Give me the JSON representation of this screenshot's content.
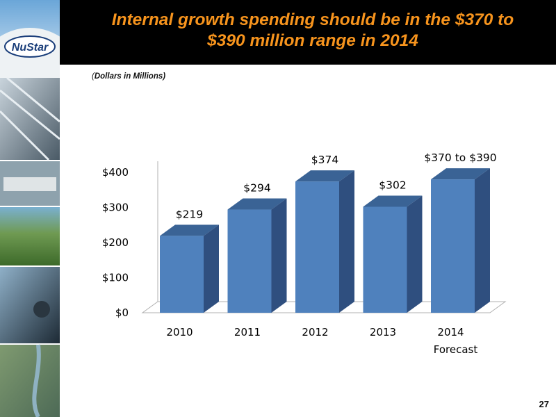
{
  "header": {
    "title_line1": "Internal growth spending should be in the $370 to",
    "title_line2": "$390 million range in 2014"
  },
  "subtitle_paren": "(",
  "subtitle_text": "Dollars in Millions)",
  "logo_text": "NuStar",
  "page_number": "27",
  "colors": {
    "title": "#f7941d",
    "bar_front": "#4f81bd",
    "bar_side": "#2f4f7f",
    "bar_top": "#3a6395",
    "header_bg": "#000000"
  },
  "chart_data": {
    "type": "bar",
    "categories": [
      "2010",
      "2011",
      "2012",
      "2013",
      "2014"
    ],
    "category_sublabels": [
      "",
      "",
      "",
      "",
      "Forecast"
    ],
    "values": [
      219,
      294,
      374,
      302,
      380
    ],
    "data_labels": [
      "$219",
      "$294",
      "$374",
      "$302",
      "$370 to $390"
    ],
    "ylim": [
      0,
      400
    ],
    "yticks": [
      0,
      100,
      200,
      300,
      400
    ],
    "ytick_labels": [
      "$0",
      "$100",
      "$200",
      "$300",
      "$400"
    ],
    "grid": false,
    "legend": "none",
    "style": "3d-column"
  }
}
